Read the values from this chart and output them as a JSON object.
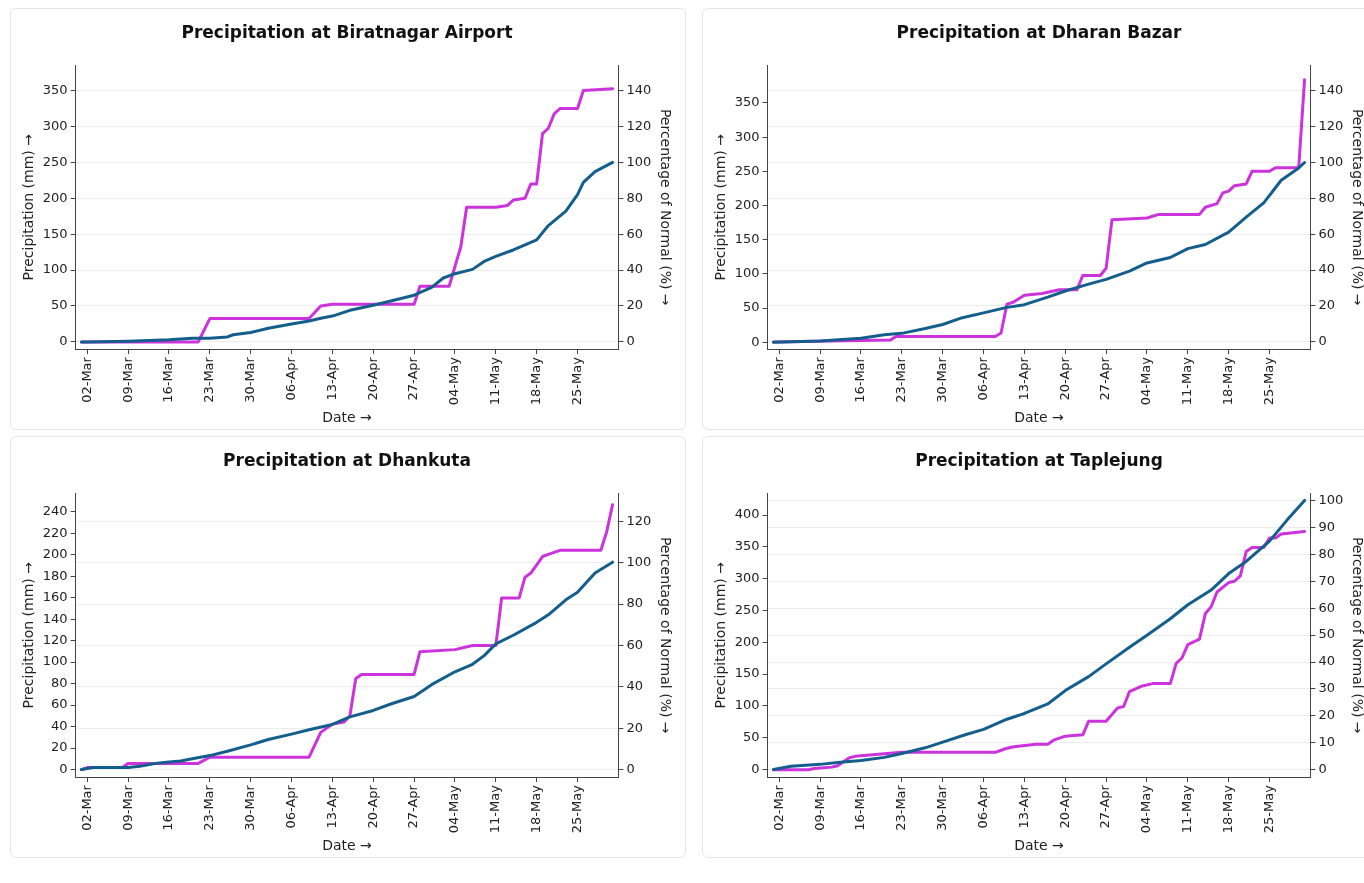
{
  "chart_data": [
    {
      "type": "line",
      "title": "Precipitation at Biratnagar Airport",
      "xlabel": "Date →",
      "ylabel": "Precipitation (mm) →",
      "y2label": "Percentage of Normal (%) →",
      "grid": "y2",
      "xlim": [
        "--02-28",
        "--06-01"
      ],
      "xticks": [
        {
          "value": "--03-02",
          "label": "02-Mar"
        },
        {
          "value": "--03-09",
          "label": "09-Mar"
        },
        {
          "value": "--03-16",
          "label": "16-Mar"
        },
        {
          "value": "--03-23",
          "label": "23-Mar"
        },
        {
          "value": "--03-30",
          "label": "30-Mar"
        },
        {
          "value": "--04-06",
          "label": "06-Apr"
        },
        {
          "value": "--04-13",
          "label": "13-Apr"
        },
        {
          "value": "--04-20",
          "label": "20-Apr"
        },
        {
          "value": "--04-27",
          "label": "27-Apr"
        },
        {
          "value": "--05-04",
          "label": "04-May"
        },
        {
          "value": "--05-11",
          "label": "11-May"
        },
        {
          "value": "--05-18",
          "label": "18-May"
        },
        {
          "value": "--05-25",
          "label": "25-May"
        }
      ],
      "ylim": [
        -10,
        385
      ],
      "yticks": [
        0,
        50,
        100,
        150,
        200,
        250,
        300,
        350
      ],
      "y2lim": [
        -4,
        154
      ],
      "y2ticks": [
        0,
        20,
        40,
        60,
        80,
        100,
        120,
        140
      ],
      "series": [
        {
          "color": "#135e8c",
          "x": [
            "--03-01",
            "--03-02",
            "--03-09",
            "--03-16",
            "--03-20",
            "--03-23",
            "--03-26",
            "--03-27",
            "--03-30",
            "--04-02",
            "--04-06",
            "--04-09",
            "--04-11",
            "--04-13",
            "--04-16",
            "--04-20",
            "--04-23",
            "--04-27",
            "--04-30",
            "--05-02",
            "--05-04",
            "--05-07",
            "--05-09",
            "--05-11",
            "--05-14",
            "--05-16",
            "--05-18",
            "--05-20",
            "--05-23",
            "--05-25",
            "--05-26",
            "--05-28",
            "--05-31"
          ],
          "values": [
            0,
            0,
            1,
            3,
            5,
            5,
            7,
            10,
            13,
            19,
            25,
            29,
            33,
            36,
            44,
            51,
            57,
            65,
            76,
            89,
            95,
            101,
            112,
            119,
            128,
            135,
            142,
            162,
            182,
            205,
            222,
            237,
            250
          ]
        },
        {
          "color": "#cc33dd",
          "axis": "y2",
          "x": [
            "--03-01",
            "--03-21",
            "--03-23",
            "--04-09",
            "--04-11",
            "--04-13",
            "--04-27",
            "--04-28",
            "--05-03",
            "--05-05",
            "--05-06",
            "--05-11",
            "--05-13",
            "--05-14",
            "--05-16",
            "--05-17",
            "--05-18",
            "--05-19",
            "--05-20",
            "--05-21",
            "--05-22",
            "--05-25",
            "--05-26",
            "--05-31"
          ],
          "values": [
            0,
            0,
            13,
            13,
            20,
            21,
            21,
            31,
            31,
            53,
            75,
            75,
            76,
            79,
            80,
            88,
            88,
            116,
            119,
            127,
            130,
            130,
            140,
            141
          ]
        }
      ]
    },
    {
      "type": "line",
      "title": "Precipitation at Dharan Bazar",
      "xlabel": "Date →",
      "ylabel": "Precipitation (mm) →",
      "y2label": "Percentage of Normal (%) →",
      "grid": "y2",
      "xlim": [
        "--02-28",
        "--06-01"
      ],
      "xticks": [
        {
          "value": "--03-02",
          "label": "02-Mar"
        },
        {
          "value": "--03-09",
          "label": "09-Mar"
        },
        {
          "value": "--03-16",
          "label": "16-Mar"
        },
        {
          "value": "--03-23",
          "label": "23-Mar"
        },
        {
          "value": "--03-30",
          "label": "30-Mar"
        },
        {
          "value": "--04-06",
          "label": "06-Apr"
        },
        {
          "value": "--04-13",
          "label": "13-Apr"
        },
        {
          "value": "--04-20",
          "label": "20-Apr"
        },
        {
          "value": "--04-27",
          "label": "27-Apr"
        },
        {
          "value": "--05-04",
          "label": "04-May"
        },
        {
          "value": "--05-11",
          "label": "11-May"
        },
        {
          "value": "--05-18",
          "label": "18-May"
        },
        {
          "value": "--05-25",
          "label": "25-May"
        }
      ],
      "ylim": [
        -10,
        405
      ],
      "yticks": [
        0,
        50,
        100,
        150,
        200,
        250,
        300,
        350
      ],
      "y2lim": [
        -4,
        154
      ],
      "y2ticks": [
        0,
        20,
        40,
        60,
        80,
        100,
        120,
        140
      ],
      "series": [
        {
          "color": "#135e8c",
          "x": [
            "--03-01",
            "--03-09",
            "--03-16",
            "--03-20",
            "--03-23",
            "--03-27",
            "--03-30",
            "--04-02",
            "--04-06",
            "--04-10",
            "--04-13",
            "--04-17",
            "--04-20",
            "--04-24",
            "--04-27",
            "--05-01",
            "--05-04",
            "--05-08",
            "--05-11",
            "--05-14",
            "--05-18",
            "--05-21",
            "--05-24",
            "--05-27",
            "--05-30",
            "--05-31"
          ],
          "values": [
            0,
            2,
            6,
            11,
            13,
            20,
            26,
            35,
            43,
            51,
            55,
            66,
            75,
            85,
            92,
            104,
            116,
            124,
            137,
            143,
            161,
            183,
            204,
            237,
            255,
            263
          ]
        },
        {
          "color": "#cc33dd",
          "axis": "y2",
          "x": [
            "--03-01",
            "--03-21",
            "--03-22",
            "--04-08",
            "--04-09",
            "--04-10",
            "--04-11",
            "--04-13",
            "--04-16",
            "--04-19",
            "--04-22",
            "--04-23",
            "--04-26",
            "--04-27",
            "--04-28",
            "--05-04",
            "--05-06",
            "--05-13",
            "--05-14",
            "--05-16",
            "--05-17",
            "--05-18",
            "--05-19",
            "--05-21",
            "--05-22",
            "--05-25",
            "--05-26",
            "--05-30",
            "--05-31"
          ],
          "values": [
            0,
            1,
            3,
            3,
            5,
            21,
            22,
            26,
            27,
            29,
            29,
            37,
            37,
            41,
            68,
            69,
            71,
            71,
            75,
            77,
            83,
            84,
            87,
            88,
            95,
            95,
            97,
            97,
            146
          ]
        }
      ]
    },
    {
      "type": "line",
      "title": "Precipitation at Dhankuta",
      "xlabel": "Date →",
      "ylabel": "Precipitation (mm) →",
      "y2label": "Percentage of Normal (%) →",
      "grid": "y2",
      "xlim": [
        "--02-28",
        "--06-01"
      ],
      "xticks": [
        {
          "value": "--03-02",
          "label": "02-Mar"
        },
        {
          "value": "--03-09",
          "label": "09-Mar"
        },
        {
          "value": "--03-16",
          "label": "16-Mar"
        },
        {
          "value": "--03-23",
          "label": "23-Mar"
        },
        {
          "value": "--03-30",
          "label": "30-Mar"
        },
        {
          "value": "--04-06",
          "label": "06-Apr"
        },
        {
          "value": "--04-13",
          "label": "13-Apr"
        },
        {
          "value": "--04-20",
          "label": "20-Apr"
        },
        {
          "value": "--04-27",
          "label": "27-Apr"
        },
        {
          "value": "--05-04",
          "label": "04-May"
        },
        {
          "value": "--05-11",
          "label": "11-May"
        },
        {
          "value": "--05-18",
          "label": "18-May"
        },
        {
          "value": "--05-25",
          "label": "25-May"
        }
      ],
      "ylim": [
        -7,
        257
      ],
      "yticks": [
        0,
        20,
        40,
        60,
        80,
        100,
        120,
        140,
        160,
        180,
        200,
        220,
        240
      ],
      "y2lim": [
        -3.6,
        133.5
      ],
      "y2ticks": [
        0,
        20,
        40,
        60,
        80,
        100,
        120
      ],
      "series": [
        {
          "color": "#135e8c",
          "x": [
            "--03-01",
            "--03-03",
            "--03-09",
            "--03-11",
            "--03-14",
            "--03-16",
            "--03-18",
            "--03-20",
            "--03-23",
            "--03-26",
            "--03-30",
            "--04-02",
            "--04-06",
            "--04-09",
            "--04-13",
            "--04-16",
            "--04-20",
            "--04-23",
            "--04-27",
            "--04-30",
            "--05-04",
            "--05-07",
            "--05-09",
            "--05-11",
            "--05-14",
            "--05-18",
            "--05-20",
            "--05-23",
            "--05-25",
            "--05-28",
            "--05-31"
          ],
          "values": [
            0,
            2,
            2,
            3,
            6,
            7,
            8,
            10,
            13,
            17,
            23,
            28,
            33,
            37,
            42,
            49,
            55,
            61,
            68,
            79,
            91,
            98,
            106,
            117,
            125,
            137,
            144,
            158,
            165,
            183,
            193
          ]
        },
        {
          "color": "#cc33dd",
          "axis": "y2",
          "x": [
            "--03-01",
            "--03-02",
            "--03-08",
            "--03-09",
            "--03-21",
            "--03-23",
            "--04-09",
            "--04-11",
            "--04-13",
            "--04-15",
            "--04-16",
            "--04-17",
            "--04-18",
            "--04-27",
            "--04-28",
            "--05-04",
            "--05-07",
            "--05-11",
            "--05-12",
            "--05-15",
            "--05-16",
            "--05-17",
            "--05-19",
            "--05-20",
            "--05-22",
            "--05-29",
            "--05-30",
            "--05-31"
          ],
          "values": [
            0,
            1,
            1,
            3,
            3,
            6,
            6,
            18,
            22,
            23,
            26,
            44,
            46,
            46,
            57,
            58,
            60,
            60,
            83,
            83,
            93,
            95,
            103,
            104,
            106,
            106,
            115,
            128
          ]
        }
      ]
    },
    {
      "type": "line",
      "title": "Precipitation at Taplejung",
      "xlabel": "Date →",
      "ylabel": "Precipitation (mm) →",
      "y2label": "Percentage of Normal (%) →",
      "grid": "y2",
      "xlim": [
        "--02-28",
        "--06-01"
      ],
      "xticks": [
        {
          "value": "--03-02",
          "label": "02-Mar"
        },
        {
          "value": "--03-09",
          "label": "09-Mar"
        },
        {
          "value": "--03-16",
          "label": "16-Mar"
        },
        {
          "value": "--03-23",
          "label": "23-Mar"
        },
        {
          "value": "--03-30",
          "label": "30-Mar"
        },
        {
          "value": "--04-06",
          "label": "06-Apr"
        },
        {
          "value": "--04-13",
          "label": "13-Apr"
        },
        {
          "value": "--04-20",
          "label": "20-Apr"
        },
        {
          "value": "--04-27",
          "label": "27-Apr"
        },
        {
          "value": "--05-04",
          "label": "04-May"
        },
        {
          "value": "--05-11",
          "label": "11-May"
        },
        {
          "value": "--05-18",
          "label": "18-May"
        },
        {
          "value": "--05-25",
          "label": "25-May"
        }
      ],
      "ylim": [
        -12,
        434
      ],
      "yticks": [
        0,
        50,
        100,
        150,
        200,
        250,
        300,
        350,
        400
      ],
      "y2lim": [
        -2.7,
        102.6
      ],
      "y2ticks": [
        0,
        10,
        20,
        30,
        40,
        50,
        60,
        70,
        80,
        90,
        100
      ],
      "series": [
        {
          "color": "#135e8c",
          "x": [
            "--03-01",
            "--03-04",
            "--03-09",
            "--03-12",
            "--03-16",
            "--03-20",
            "--03-23",
            "--03-27",
            "--03-30",
            "--04-03",
            "--04-06",
            "--04-10",
            "--04-13",
            "--04-17",
            "--04-20",
            "--04-24",
            "--04-27",
            "--05-01",
            "--05-04",
            "--05-08",
            "--05-11",
            "--05-15",
            "--05-18",
            "--05-21",
            "--05-25",
            "--05-28",
            "--05-31"
          ],
          "values": [
            0,
            5,
            8,
            11,
            14,
            19,
            25,
            34,
            43,
            55,
            63,
            79,
            88,
            103,
            124,
            146,
            166,
            192,
            211,
            237,
            259,
            282,
            308,
            327,
            359,
            392,
            423
          ]
        },
        {
          "color": "#cc33dd",
          "axis": "y2",
          "x": [
            "--03-01",
            "--03-07",
            "--03-08",
            "--03-11",
            "--03-12",
            "--03-14",
            "--03-15",
            "--03-23",
            "--04-08",
            "--04-10",
            "--04-11",
            "--04-15",
            "--04-17",
            "--04-18",
            "--04-20",
            "--04-23",
            "--04-24",
            "--04-27",
            "--04-29",
            "--04-30",
            "--05-01",
            "--05-03",
            "--05-05",
            "--05-08",
            "--05-09",
            "--05-10",
            "--05-11",
            "--05-13",
            "--05-14",
            "--05-15",
            "--05-16",
            "--05-18",
            "--05-19",
            "--05-20",
            "--05-21",
            "--05-22",
            "--05-24",
            "--05-25",
            "--05-26",
            "--05-27",
            "--05-31"
          ],
          "values": [
            0,
            0,
            0.5,
            1,
            1.5,
            4.5,
            5,
            6.5,
            6.5,
            8,
            8.5,
            9.5,
            9.5,
            11,
            12.5,
            13,
            18,
            18,
            23,
            23.5,
            29,
            31,
            32,
            32,
            39.5,
            41.5,
            46.5,
            48.5,
            58,
            60.5,
            66,
            69.5,
            70,
            72,
            81,
            82.5,
            82.5,
            86,
            86,
            87.5,
            88.5
          ]
        }
      ]
    }
  ]
}
